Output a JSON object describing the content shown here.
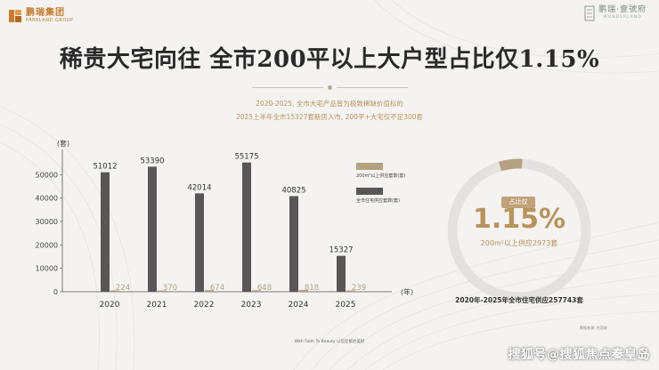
{
  "brand_left": {
    "name_cn": "鹏瑞集团",
    "name_en": "PARKLAND GROUP"
  },
  "brand_right": {
    "name_cn": "鹏瑞·壹號府",
    "name_en": "WONDERLAND"
  },
  "title": "稀贵大宅向往 全市200平以上大户型占比仅1.15%",
  "subtitle_lines": [
    "2020-2025, 全市大宅产品皆为极致稀缺价值标的",
    "2025上半年全市15327套新房入市, 200平+大宅仅不足300套"
  ],
  "chart_data": {
    "type": "bar",
    "categories": [
      "2020",
      "2021",
      "2022",
      "2023",
      "2024",
      "2025"
    ],
    "series": [
      {
        "name": "全市住宅供应套数(套)",
        "values": [
          51012,
          53390,
          42014,
          55175,
          40825,
          15327
        ],
        "color": "#5a5657"
      },
      {
        "name": "200m²以上供应套数(套)",
        "values": [
          224,
          370,
          674,
          648,
          818,
          239
        ],
        "color": "#b5a17f"
      }
    ],
    "yticks": [
      0,
      10000,
      20000,
      30000,
      40000,
      50000
    ],
    "ylim": [
      0,
      60000
    ],
    "ylabel": "(套)",
    "xlabel": "(年)",
    "legend_position": "right"
  },
  "ring": {
    "badge": "占比仅",
    "value": "1.15%",
    "note": "200m²以上供应2973套",
    "caption": "2020年-2025年全市住宅供应257743套",
    "fraction": 0.0115,
    "track_color": "#e3e2e0",
    "accent_color": "#b5a17f"
  },
  "source": "数据来源: 克而瑞",
  "footer_tag": "With Faith To Beauty  以信任抵达美好",
  "watermark": "搜狐号@搜狐焦点秦皇岛"
}
